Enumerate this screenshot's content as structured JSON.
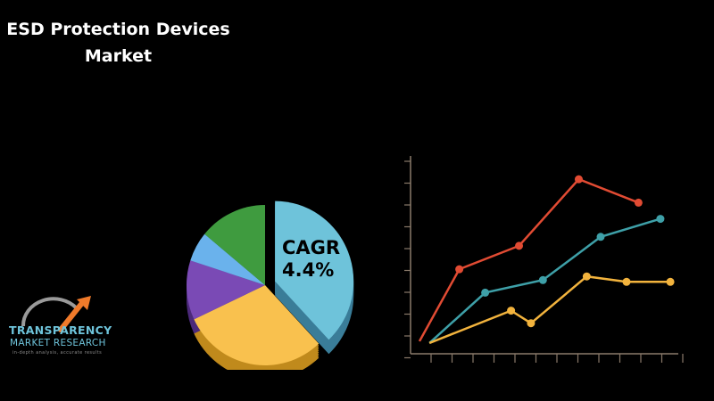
{
  "title": {
    "line1": "ESD Protection Devices",
    "line2": "Market"
  },
  "cagr": {
    "label": "CAGR",
    "value": "4.4%"
  },
  "logo": {
    "line1": "TRANSPARENCY",
    "line2": "MARKET RESEARCH",
    "line3": "in-depth analysis, accurate results"
  },
  "colors": {
    "background": "#000000",
    "pie": [
      "#6ec3da",
      "#f9c14e",
      "#7a4ab5",
      "#6ab2ec",
      "#3f9b3f"
    ],
    "pie_side": [
      "#3a7d98",
      "#c08a1c",
      "#4c2a7a",
      "#3c7aa8",
      "#256325"
    ],
    "red": "#e14b33",
    "teal": "#3ea0a8",
    "gold": "#f2b33d",
    "axis": "#8a7a6a"
  },
  "chart_data": [
    {
      "type": "pie",
      "values": [
        38,
        30,
        12,
        6,
        14
      ],
      "exploded_slice": 0
    },
    {
      "type": "line",
      "x": [
        0,
        1,
        2,
        3,
        4,
        5,
        6,
        7,
        8,
        9,
        10,
        11,
        12
      ],
      "ylim": [
        0,
        10
      ],
      "series": [
        {
          "color": "#e14b33",
          "points": [
            [
              0,
              0.3
            ],
            [
              2,
              4.3
            ],
            [
              5,
              5.6
            ],
            [
              8,
              9.3
            ],
            [
              11,
              8.0
            ]
          ]
        },
        {
          "color": "#3ea0a8",
          "points": [
            [
              0.5,
              0.2
            ],
            [
              3.3,
              3.0
            ],
            [
              6.2,
              3.7
            ],
            [
              9.1,
              6.1
            ],
            [
              12.1,
              7.1
            ]
          ]
        },
        {
          "color": "#f2b33d",
          "points": [
            [
              0.5,
              0.2
            ],
            [
              4.6,
              2.0
            ],
            [
              5.6,
              1.3
            ],
            [
              8.4,
              3.9
            ],
            [
              10.4,
              3.6
            ],
            [
              12.6,
              3.6
            ]
          ]
        }
      ],
      "grid": false
    }
  ]
}
